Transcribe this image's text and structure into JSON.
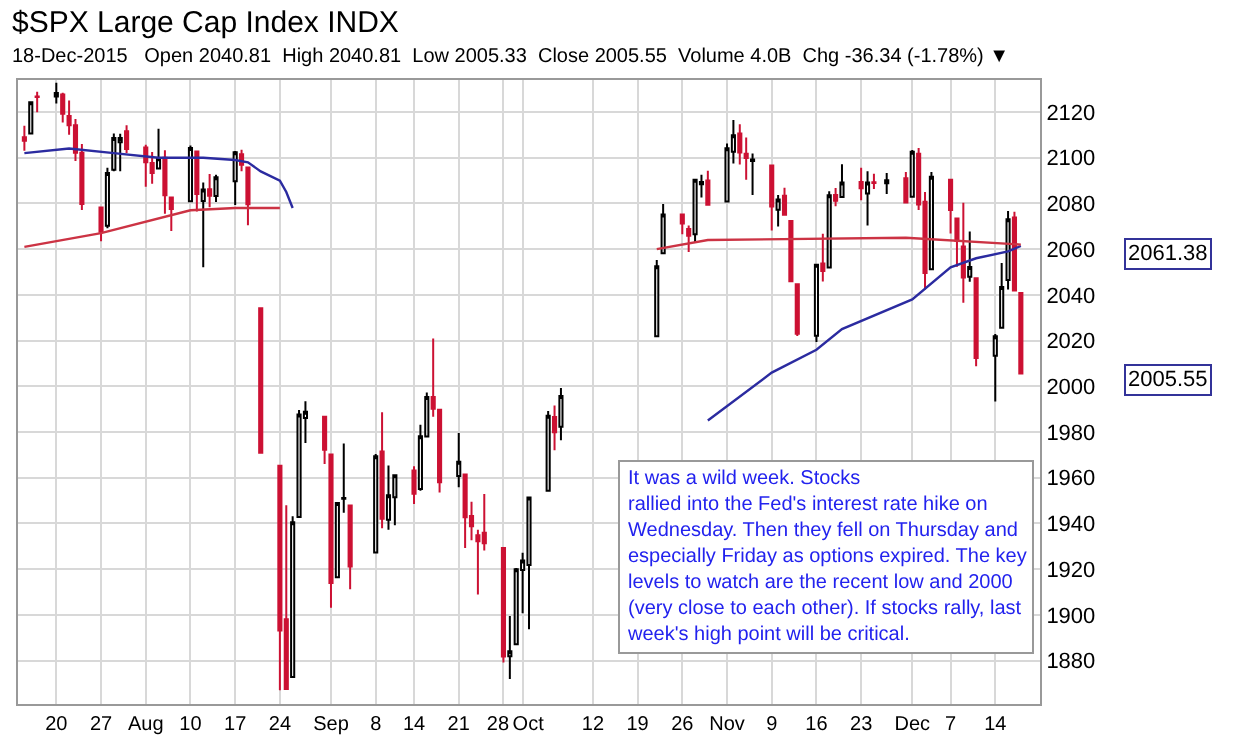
{
  "chart_data": {
    "type": "candlestick",
    "title": "$SPX Large Cap Index INDX",
    "subtitle": "18-Dec-2015   Open 2040.81  High 2040.81  Low 2005.33  Close 2005.55  Volume 4.0B  Chg -36.34 (-1.78%) ▼",
    "x": [
      "2015-07-15",
      "2015-07-16",
      "2015-07-17",
      "2015-07-20",
      "2015-07-21",
      "2015-07-22",
      "2015-07-23",
      "2015-07-24",
      "2015-07-27",
      "2015-07-28",
      "2015-07-29",
      "2015-07-30",
      "2015-07-31",
      "2015-08-03",
      "2015-08-04",
      "2015-08-05",
      "2015-08-06",
      "2015-08-07",
      "2015-08-10",
      "2015-08-11",
      "2015-08-12",
      "2015-08-13",
      "2015-08-14",
      "2015-08-17",
      "2015-08-18",
      "2015-08-19",
      "2015-08-21",
      "2015-08-24",
      "2015-08-25",
      "2015-08-26",
      "2015-08-27",
      "2015-08-28",
      "2015-08-31",
      "2015-09-01",
      "2015-09-02",
      "2015-09-03",
      "2015-09-04",
      "2015-09-08",
      "2015-09-09",
      "2015-09-10",
      "2015-09-11",
      "2015-09-14",
      "2015-09-15",
      "2015-09-16",
      "2015-09-17",
      "2015-09-18",
      "2015-09-21",
      "2015-09-22",
      "2015-09-23",
      "2015-09-24",
      "2015-09-25",
      "2015-09-28",
      "2015-09-29",
      "2015-09-30",
      "2015-10-01",
      "2015-10-02",
      "2015-10-05",
      "2015-10-06",
      "2015-10-07",
      "2015-10-22",
      "2015-10-23",
      "2015-10-26",
      "2015-10-27",
      "2015-10-28",
      "2015-10-29",
      "2015-10-30",
      "2015-11-02",
      "2015-11-03",
      "2015-11-04",
      "2015-11-05",
      "2015-11-06",
      "2015-11-09",
      "2015-11-10",
      "2015-11-11",
      "2015-11-12",
      "2015-11-13",
      "2015-11-16",
      "2015-11-17",
      "2015-11-18",
      "2015-11-19",
      "2015-11-20",
      "2015-11-23",
      "2015-11-24",
      "2015-11-25",
      "2015-11-27",
      "2015-11-30",
      "2015-12-01",
      "2015-12-02",
      "2015-12-03",
      "2015-12-04",
      "2015-12-07",
      "2015-12-08",
      "2015-12-09",
      "2015-12-10",
      "2015-12-11",
      "2015-12-14",
      "2015-12-15",
      "2015-12-16",
      "2015-12-17",
      "2015-12-18"
    ],
    "ohlc": [
      [
        2109,
        2114,
        2103,
        2107.4
      ],
      [
        2110.6,
        2124.4,
        2110.6,
        2124.3
      ],
      [
        2126.8,
        2128.9,
        2119.9,
        2126.6
      ],
      [
        2126.8,
        2132.8,
        2123.7,
        2128.3
      ],
      [
        2127.6,
        2128.4,
        2115.4,
        2119.2
      ],
      [
        2118.2,
        2125,
        2110,
        2114.2
      ],
      [
        2114.2,
        2116.9,
        2098.6,
        2102.2
      ],
      [
        2102.2,
        2106,
        2077.1,
        2079.7
      ],
      [
        2078.2,
        2078.2,
        2063.5,
        2067.6
      ],
      [
        2070.2,
        2095.6,
        2069.1,
        2093.3
      ],
      [
        2094.7,
        2110.6,
        2094.1,
        2108.6
      ],
      [
        2106.8,
        2110.5,
        2094.1,
        2108.6
      ],
      [
        2111.6,
        2114.2,
        2102.1,
        2103.8
      ],
      [
        2104.5,
        2105.7,
        2087.3,
        2098
      ],
      [
        2097.7,
        2102.5,
        2088.6,
        2093.3
      ],
      [
        2095.3,
        2112.7,
        2095.3,
        2099.8
      ],
      [
        2100,
        2103.3,
        2075.5,
        2083.6
      ],
      [
        2082.6,
        2082.6,
        2067.9,
        2077.6
      ],
      [
        2081,
        2105.4,
        2081,
        2104.2
      ],
      [
        2102.7,
        2102.7,
        2076.5,
        2084.1
      ],
      [
        2081.1,
        2089.1,
        2052.1,
        2086.1
      ],
      [
        2086.2,
        2092.9,
        2078.3,
        2083.4
      ],
      [
        2083.2,
        2092.5,
        2080.6,
        2091.5
      ],
      [
        2089.7,
        2102.9,
        2079.3,
        2102.4
      ],
      [
        2101.5,
        2103.5,
        2094.1,
        2096.9
      ],
      [
        2095.7,
        2096.2,
        2070.5,
        2079.6
      ],
      [
        2034.1,
        2034.1,
        1970.9,
        1970.9
      ],
      [
        1965.2,
        1965.2,
        1867,
        1893.2
      ],
      [
        1898.1,
        1948,
        1867.1,
        1867.6
      ],
      [
        1872.8,
        1943.1,
        1872.8,
        1940.5
      ],
      [
        1942.8,
        1989.6,
        1942.8,
        1987.7
      ],
      [
        1986.1,
        1993.5,
        1975.2,
        1988.9
      ],
      [
        1986.7,
        1986.7,
        1966,
        1972.2
      ],
      [
        1970.1,
        1970.1,
        1903.1,
        1913.9
      ],
      [
        1916.5,
        1948.9,
        1916.5,
        1948.9
      ],
      [
        1950.8,
        1975,
        1944.7,
        1951.1
      ],
      [
        1947.8,
        1947.8,
        1911.2,
        1921.2
      ],
      [
        1927.3,
        1970.4,
        1927.3,
        1969.4
      ],
      [
        1971.5,
        1988.6,
        1937.9,
        1942
      ],
      [
        1941.6,
        1965.3,
        1937.2,
        1952.3
      ],
      [
        1951.5,
        1961.1,
        1939.2,
        1961.1
      ],
      [
        1963.1,
        1965,
        1948.5,
        1953
      ],
      [
        1955.1,
        1983.2,
        1954.3,
        1978.1
      ],
      [
        1978,
        1997.3,
        1977.9,
        1995.3
      ],
      [
        1995.3,
        2020.9,
        1986.7,
        1990.2
      ],
      [
        1989.7,
        1989.7,
        1953.5,
        1958
      ],
      [
        1960.8,
        1979.6,
        1955.8,
        1967
      ],
      [
        1961.4,
        1961.4,
        1929.2,
        1942.7
      ],
      [
        1943.2,
        1949.5,
        1932.6,
        1938.8
      ],
      [
        1934.8,
        1937.2,
        1908.9,
        1932.2
      ],
      [
        1935.9,
        1952.9,
        1928.1,
        1931.3
      ],
      [
        1929.2,
        1929.2,
        1879.2,
        1881.8
      ],
      [
        1881.9,
        1899.5,
        1871.9,
        1884.1
      ],
      [
        1887.1,
        1920.5,
        1887.1,
        1920
      ],
      [
        1919.6,
        1927.2,
        1900.7,
        1923.8
      ],
      [
        1921.8,
        1951.4,
        1893.7,
        1951.4
      ],
      [
        1954.3,
        1989.2,
        1954.3,
        1987.1
      ],
      [
        1986.6,
        1991.6,
        1972,
        1979.9
      ],
      [
        1982.3,
        1999.3,
        1976.4,
        1995.8
      ],
      [
        2021.9,
        2055.2,
        2021.9,
        2052.5
      ],
      [
        2058.2,
        2079.7,
        2058.2,
        2075.2
      ],
      [
        2075.1,
        2075.1,
        2066.5,
        2071.2
      ],
      [
        2068.8,
        2070.4,
        2058.8,
        2065.9
      ],
      [
        2066.5,
        2090.4,
        2063.1,
        2090.4
      ],
      [
        2088.4,
        2092.5,
        2082.6,
        2089.4
      ],
      [
        2090,
        2094.3,
        2079.3,
        2079.4
      ],
      [
        2080.8,
        2106.2,
        2080.8,
        2104.1
      ],
      [
        2102.6,
        2116.5,
        2097.5,
        2109.8
      ],
      [
        2110.6,
        2114.6,
        2097,
        2102.3
      ],
      [
        2101.7,
        2108.8,
        2090.4,
        2099.9
      ],
      [
        2098.6,
        2101.9,
        2083.7,
        2099.2
      ],
      [
        2096.6,
        2096.6,
        2068.2,
        2078.6
      ],
      [
        2077.2,
        2083.7,
        2069.9,
        2081.7
      ],
      [
        2083.4,
        2086.9,
        2074.9,
        2075
      ],
      [
        2072.3,
        2072.3,
        2045.7,
        2046
      ],
      [
        2044.6,
        2044.6,
        2022,
        2023
      ],
      [
        2022.1,
        2053.2,
        2019.4,
        2053.2
      ],
      [
        2053.7,
        2066.7,
        2045.9,
        2050.4
      ],
      [
        2052,
        2085.3,
        2052,
        2083.6
      ],
      [
        2083.7,
        2086.7,
        2078.8,
        2081.2
      ],
      [
        2082.8,
        2097.1,
        2082.8,
        2089.2
      ],
      [
        2089.4,
        2095.6,
        2081.4,
        2086.6
      ],
      [
        2084.4,
        2094.1,
        2070.3,
        2089.1
      ],
      [
        2089.3,
        2093,
        2086.3,
        2088.9
      ],
      [
        2088.8,
        2093.3,
        2084.1,
        2090.1
      ],
      [
        2091,
        2093.8,
        2080.4,
        2080.4
      ],
      [
        2082.9,
        2103.4,
        2082.9,
        2102.6
      ],
      [
        2101.7,
        2104.3,
        2077.1,
        2079.5
      ],
      [
        2080.7,
        2085,
        2042.4,
        2049.6
      ],
      [
        2051.2,
        2093.8,
        2051.2,
        2091.7
      ],
      [
        2090.4,
        2090.4,
        2066.8,
        2077.1
      ],
      [
        2073.4,
        2073.8,
        2052.3,
        2063.6
      ],
      [
        2061.2,
        2080.3,
        2036.5,
        2047.6
      ],
      [
        2047.9,
        2067.7,
        2045.7,
        2052.2
      ],
      [
        2047.3,
        2047.3,
        2008.8,
        2012.4
      ],
      [
        2013.4,
        2022.9,
        1993.3,
        2021.9
      ],
      [
        2025.6,
        2053.9,
        2025.6,
        2043.4
      ],
      [
        2046.5,
        2076.7,
        2042.4,
        2073.1
      ],
      [
        2073.8,
        2076.4,
        2041.7,
        2041.9
      ],
      [
        2040.81,
        2040.81,
        2005.33,
        2005.55
      ]
    ],
    "series": [
      {
        "type": "line",
        "color": "#2b2ba0",
        "x": [
          "2015-07-15",
          "2015-07-22",
          "2015-07-29",
          "2015-08-05",
          "2015-08-12",
          "2015-08-17",
          "2015-08-19",
          "2015-08-21",
          "2015-08-24",
          "2015-08-25",
          "2015-08-26",
          "2015-08-27",
          "2015-10-29",
          "2015-10-30",
          "2015-11-09",
          "2015-11-16",
          "2015-11-20",
          "2015-12-01",
          "2015-12-07",
          "2015-12-11",
          "2015-12-16",
          "2015-12-18"
        ],
        "values": [
          2102,
          2104,
          2102,
          2100,
          2100,
          2099,
          2098,
          2094,
          2090,
          2085,
          2078,
          null,
          null,
          1985,
          2006,
          2016,
          2025,
          2038,
          2052,
          2056,
          2059,
          2061.38
        ]
      },
      {
        "type": "line",
        "color": "#cc3344",
        "x": [
          "2015-07-15",
          "2015-07-27",
          "2015-08-10",
          "2015-08-17",
          "2015-08-24",
          "2015-08-25",
          "2015-10-21",
          "2015-10-22",
          "2015-10-30",
          "2015-11-30",
          "2015-12-18"
        ],
        "values": [
          2061,
          2067,
          2077,
          2078,
          2078,
          null,
          null,
          2060,
          2064,
          2065,
          2062
        ]
      }
    ],
    "xlim": [
      "2015-07-14",
      "2015-12-21"
    ],
    "ylim": [
      1861,
      2134
    ],
    "yticks": [
      1880,
      1900,
      1920,
      1940,
      1960,
      1980,
      2000,
      2020,
      2040,
      2060,
      2080,
      2100,
      2120
    ],
    "xticks": [
      {
        "value": "2015-07-20",
        "label": "20"
      },
      {
        "value": "2015-07-27",
        "label": "27"
      },
      {
        "value": "2015-08-03",
        "label": "Aug"
      },
      {
        "value": "2015-08-10",
        "label": "10"
      },
      {
        "value": "2015-08-17",
        "label": "17"
      },
      {
        "value": "2015-08-24",
        "label": "24"
      },
      {
        "value": "2015-09-01",
        "label": "Sep"
      },
      {
        "value": "2015-09-08",
        "label": "8"
      },
      {
        "value": "2015-09-14",
        "label": "14"
      },
      {
        "value": "2015-09-21",
        "label": "21"
      },
      {
        "value": "2015-09-28",
        "label": "28"
      },
      {
        "value": "2015-10-01",
        "label": "Oct"
      },
      {
        "value": "2015-10-12",
        "label": "12"
      },
      {
        "value": "2015-10-19",
        "label": "19"
      },
      {
        "value": "2015-10-26",
        "label": "26"
      },
      {
        "value": "2015-11-02",
        "label": "Nov"
      },
      {
        "value": "2015-11-09",
        "label": "9"
      },
      {
        "value": "2015-11-16",
        "label": "16"
      },
      {
        "value": "2015-11-23",
        "label": "23"
      },
      {
        "value": "2015-12-01",
        "label": "Dec"
      },
      {
        "value": "2015-12-07",
        "label": "7"
      },
      {
        "value": "2015-12-14",
        "label": "14"
      }
    ],
    "grid": true,
    "annotations": [
      "It was a wild week. Stocks\nrallied into the Fed's interest rate hike on\nWednesday. Then they fell on Thursday and\nespecially Friday as options expired. The key\nlevels to watch are the recent low and 2000\n(very close to each other). If stocks rally, last\nweek's high point will be critical.",
      "2061.38",
      "2005.55"
    ]
  }
}
